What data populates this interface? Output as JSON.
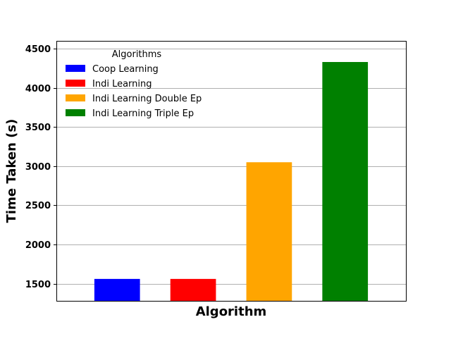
{
  "chart_data": {
    "type": "bar",
    "title": "",
    "xlabel": "Algorithm",
    "ylabel": "Time Taken (s)",
    "ylim": [
      1280,
      4600
    ],
    "yticks": [
      1500,
      2000,
      2500,
      3000,
      3500,
      4000,
      4500
    ],
    "xtick_labels_visible": false,
    "grid": "y",
    "categories": [
      "Coop Learning",
      "Indi Learning",
      "Indi Learning Double Ep",
      "Indi Learning Triple Ep"
    ],
    "values": [
      1560,
      1560,
      3050,
      4330
    ],
    "colors": [
      "#0000ff",
      "#ff0000",
      "#ffa500",
      "#008000"
    ],
    "legend": {
      "title": "Algorithms",
      "placement": "top-left",
      "entries": [
        "Coop Learning",
        "Indi Learning",
        "Indi Learning Double Ep",
        "Indi Learning Triple Ep"
      ]
    }
  }
}
